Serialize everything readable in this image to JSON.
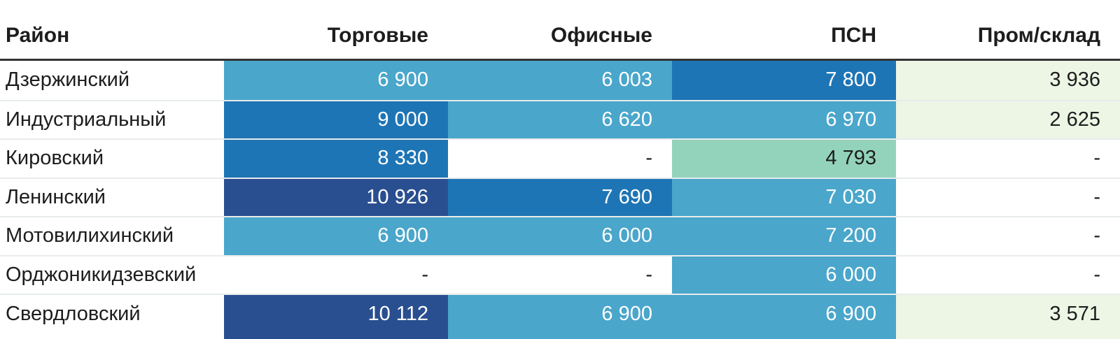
{
  "chart_data": {
    "type": "heatmap",
    "title": "",
    "row_header_label": "Район",
    "columns": [
      "Торговые",
      "Офисные",
      "ПСН",
      "Пром/склад"
    ],
    "rows": [
      "Дзержинский",
      "Индустриальный",
      "Кировский",
      "Ленинский",
      "Мотовилихинский",
      "Орджоникидзевский",
      "Свердловский"
    ],
    "values": [
      [
        6900,
        6003,
        7800,
        3936
      ],
      [
        9000,
        6620,
        6970,
        2625
      ],
      [
        8330,
        null,
        4793,
        null
      ],
      [
        10926,
        7690,
        7030,
        null
      ],
      [
        6900,
        6000,
        7200,
        null
      ],
      [
        null,
        null,
        6000,
        null
      ],
      [
        10112,
        6900,
        6900,
        3571
      ]
    ],
    "empty_placeholder": "-",
    "number_format": "space-thousands",
    "legend": "none",
    "grid": "row-separators"
  },
  "colors": {
    "color_scale": [
      {
        "max": 4200,
        "bg": "#EDF6E5",
        "text": "#1D1D1D"
      },
      {
        "max": 5500,
        "bg": "#93D3BC",
        "text": "#1D1D1D"
      },
      {
        "max": 7400,
        "bg": "#4AA6CB",
        "text": "#FFFFFF"
      },
      {
        "max": 9600,
        "bg": "#1E75B5",
        "text": "#FFFFFF"
      },
      {
        "max": 999999,
        "bg": "#2A4F90",
        "text": "#FFFFFF"
      }
    ],
    "empty_bg": "#FFFFFF",
    "empty_text": "#1D1D1D",
    "header_rule": "#333333",
    "row_separator": "#E8EBEB",
    "header_text": "#1D1D1D",
    "district_text": "#1D1D1D"
  }
}
